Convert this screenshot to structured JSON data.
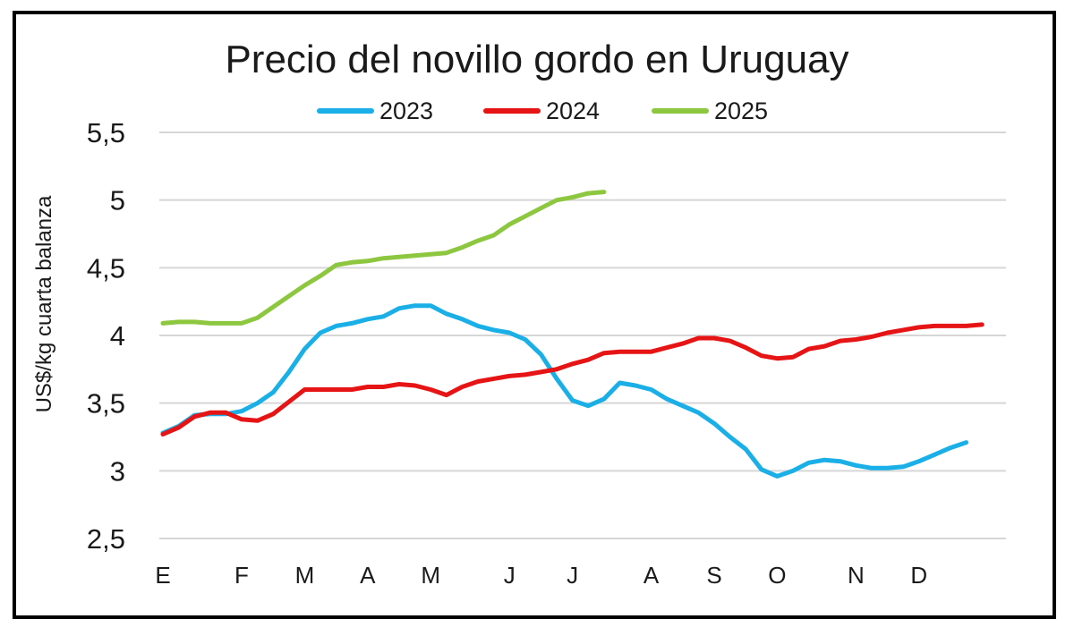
{
  "chart_data": {
    "type": "line",
    "title": "Precio del novillo gordo en Uruguay",
    "ylabel": "US$/kg cuarta balanza",
    "xlabel": "",
    "ylim": [
      2.5,
      5.5
    ],
    "yticks": [
      2.5,
      3,
      3.5,
      4,
      4.5,
      5,
      5.5
    ],
    "ytick_labels": [
      "2,5",
      "3",
      "3,5",
      "4",
      "4,5",
      "5",
      "5,5"
    ],
    "x_tick_labels": [
      "E",
      "F",
      "M",
      "A",
      "M",
      "J",
      "J",
      "A",
      "S",
      "O",
      "N",
      "D"
    ],
    "x_tick_weeks": [
      0,
      5,
      9,
      13,
      17,
      22,
      26,
      31,
      35,
      39,
      44,
      48
    ],
    "xlim": [
      0,
      52
    ],
    "grid": true,
    "legend_position": "top",
    "series": [
      {
        "name": "2023",
        "color": "#1AAFE6",
        "x": [
          0,
          1,
          2,
          3,
          4,
          5,
          6,
          7,
          8,
          9,
          10,
          11,
          12,
          13,
          14,
          15,
          16,
          17,
          18,
          19,
          20,
          21,
          22,
          23,
          24,
          25,
          26,
          27,
          28,
          29,
          30,
          31,
          32,
          33,
          34,
          35,
          36,
          37,
          38,
          39,
          40,
          41,
          42,
          43,
          44,
          45,
          46,
          47,
          48,
          49,
          50,
          51
        ],
        "values": [
          3.28,
          3.33,
          3.41,
          3.42,
          3.42,
          3.44,
          3.5,
          3.58,
          3.73,
          3.9,
          4.02,
          4.07,
          4.09,
          4.12,
          4.14,
          4.2,
          4.22,
          4.22,
          4.16,
          4.12,
          4.07,
          4.04,
          4.02,
          3.97,
          3.86,
          3.68,
          3.52,
          3.48,
          3.53,
          3.65,
          3.63,
          3.6,
          3.53,
          3.48,
          3.43,
          3.35,
          3.25,
          3.16,
          3.01,
          2.96,
          3.0,
          3.06,
          3.08,
          3.07,
          3.04,
          3.02,
          3.02,
          3.03,
          3.07,
          3.12,
          3.17,
          3.21
        ]
      },
      {
        "name": "2024",
        "color": "#E61414",
        "x": [
          0,
          1,
          2,
          3,
          4,
          5,
          6,
          7,
          8,
          9,
          10,
          11,
          12,
          13,
          14,
          15,
          16,
          17,
          18,
          19,
          20,
          21,
          22,
          23,
          24,
          25,
          26,
          27,
          28,
          29,
          30,
          31,
          32,
          33,
          34,
          35,
          36,
          37,
          38,
          39,
          40,
          41,
          42,
          43,
          44,
          45,
          46,
          47,
          48,
          49,
          50,
          51,
          52
        ],
        "values": [
          3.27,
          3.32,
          3.4,
          3.43,
          3.43,
          3.38,
          3.37,
          3.42,
          3.51,
          3.6,
          3.6,
          3.6,
          3.6,
          3.62,
          3.62,
          3.64,
          3.63,
          3.6,
          3.56,
          3.62,
          3.66,
          3.68,
          3.7,
          3.71,
          3.73,
          3.75,
          3.79,
          3.82,
          3.87,
          3.88,
          3.88,
          3.88,
          3.91,
          3.94,
          3.98,
          3.98,
          3.96,
          3.91,
          3.85,
          3.83,
          3.84,
          3.9,
          3.92,
          3.96,
          3.97,
          3.99,
          4.02,
          4.04,
          4.06,
          4.07,
          4.07,
          4.07,
          4.08
        ]
      },
      {
        "name": "2025",
        "color": "#8DC63F",
        "x": [
          0,
          1,
          2,
          3,
          4,
          5,
          6,
          7,
          8,
          9,
          10,
          11,
          12,
          13,
          14,
          15,
          16,
          17,
          18,
          19,
          20,
          21,
          22,
          23,
          24,
          25,
          26,
          27,
          28
        ],
        "values": [
          4.09,
          4.1,
          4.1,
          4.09,
          4.09,
          4.09,
          4.13,
          4.21,
          4.29,
          4.37,
          4.44,
          4.52,
          4.54,
          4.55,
          4.57,
          4.58,
          4.59,
          4.6,
          4.61,
          4.65,
          4.7,
          4.74,
          4.82,
          4.88,
          4.94,
          5.0,
          5.02,
          5.05,
          5.06
        ]
      }
    ]
  }
}
